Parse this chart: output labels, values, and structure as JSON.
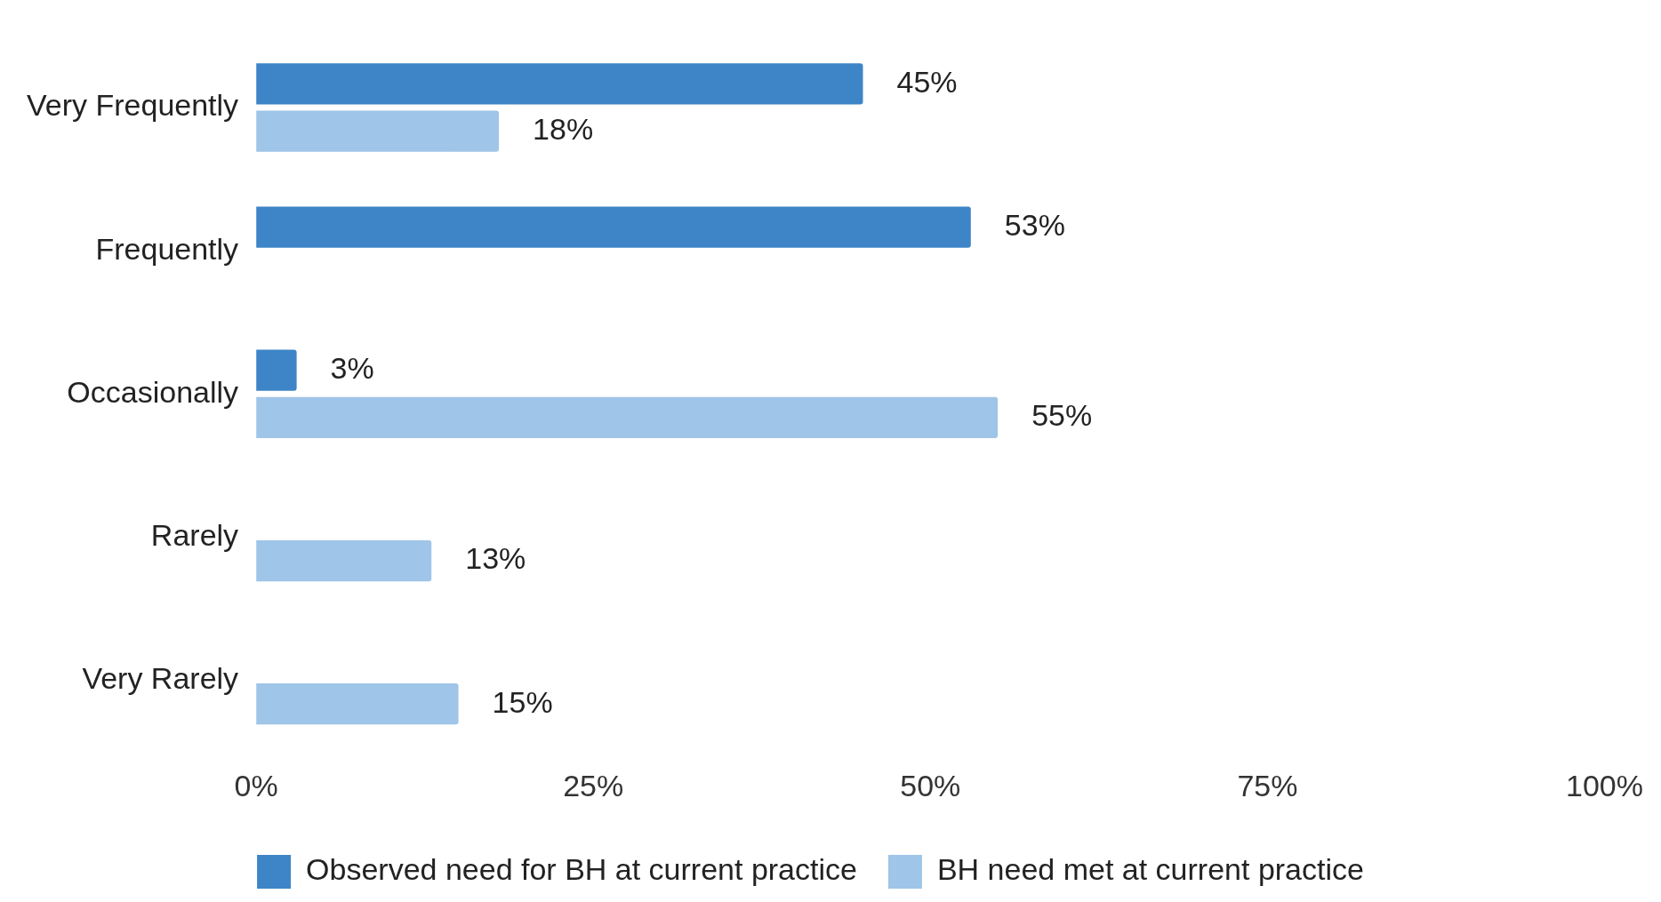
{
  "chart_data": {
    "type": "bar",
    "orientation": "horizontal",
    "categories": [
      "Very Frequently",
      "Frequently",
      "Occasionally",
      "Rarely",
      "Very Rarely"
    ],
    "series": [
      {
        "name": "Observed need for BH at current practice",
        "color": "#3d85c6",
        "values": [
          45,
          53,
          3,
          null,
          null
        ],
        "value_labels": [
          "45%",
          "53%",
          "3%",
          null,
          null
        ]
      },
      {
        "name": "BH need met at current practice",
        "color": "#9fc5e8",
        "values": [
          18,
          null,
          55,
          13,
          15
        ],
        "value_labels": [
          "18%",
          null,
          "55%",
          "13%",
          "15%"
        ]
      }
    ],
    "xlim": [
      0,
      100
    ],
    "xticks": [
      {
        "value": 0,
        "label": "0%"
      },
      {
        "value": 25,
        "label": "25%"
      },
      {
        "value": 50,
        "label": "50%"
      },
      {
        "value": 75,
        "label": "75%"
      },
      {
        "value": 100,
        "label": "100%"
      }
    ],
    "grid": false,
    "legend": "bottom"
  }
}
